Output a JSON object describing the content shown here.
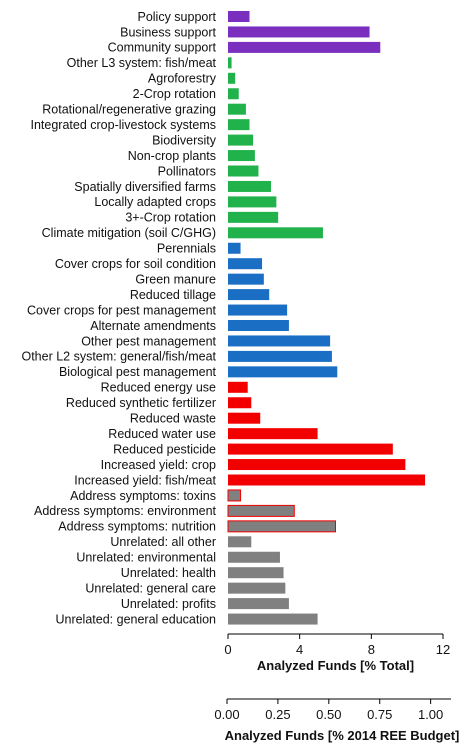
{
  "chart_data": {
    "type": "bar",
    "orientation": "horizontal",
    "categories": [
      "Policy support",
      "Business support",
      "Community support",
      "Other L3 system: fish/meat",
      "Agroforestry",
      "2-Crop rotation",
      "Rotational/regenerative grazing",
      "Integrated crop-livestock systems",
      "Biodiversity",
      "Non-crop plants",
      "Pollinators",
      "Spatially diversified farms",
      "Locally adapted crops",
      "3+-Crop rotation",
      "Climate mitigation (soil C/GHG)",
      "Perennials",
      "Cover crops for soil condition",
      "Green manure",
      "Reduced tillage",
      "Cover crops for pest management",
      "Alternate amendments",
      "Other pest management",
      "Other L2 system: general/fish/meat",
      "Biological pest management",
      "Reduced energy use",
      "Reduced synthetic fertilizer",
      "Reduced waste",
      "Reduced water use",
      "Reduced pesticide",
      "Increased yield: crop",
      "Increased yield: fish/meat",
      "Address symptoms: toxins",
      "Address symptoms: environment",
      "Address symptoms: nutrition",
      "Unrelated: all other",
      "Unrelated: environmental",
      "Unrelated: health",
      "Unrelated: general care",
      "Unrelated: profits",
      "Unrelated: general education"
    ],
    "values": [
      1.2,
      7.9,
      8.5,
      0.2,
      0.4,
      0.6,
      1.0,
      1.2,
      1.4,
      1.5,
      1.7,
      2.4,
      2.7,
      2.8,
      5.3,
      0.7,
      1.9,
      2.0,
      2.3,
      3.3,
      3.4,
      5.7,
      5.8,
      6.1,
      1.1,
      1.3,
      1.8,
      5.0,
      9.2,
      9.9,
      11.0,
      0.7,
      3.7,
      6.0,
      1.3,
      2.9,
      3.1,
      3.2,
      3.4,
      5.0
    ],
    "bar_colors": [
      "#7b2fbe",
      "#7b2fbe",
      "#7b2fbe",
      "#21b24b",
      "#21b24b",
      "#21b24b",
      "#21b24b",
      "#21b24b",
      "#21b24b",
      "#21b24b",
      "#21b24b",
      "#21b24b",
      "#21b24b",
      "#21b24b",
      "#21b24b",
      "#1a6fc4",
      "#1a6fc4",
      "#1a6fc4",
      "#1a6fc4",
      "#1a6fc4",
      "#1a6fc4",
      "#1a6fc4",
      "#1a6fc4",
      "#1a6fc4",
      "#f20000",
      "#f20000",
      "#f20000",
      "#f20000",
      "#f20000",
      "#f20000",
      "#f20000",
      "#808080",
      "#808080",
      "#808080",
      "#808080",
      "#808080",
      "#808080",
      "#808080",
      "#808080",
      "#808080"
    ],
    "bar_outlines": [
      "",
      "",
      "",
      "",
      "",
      "",
      "",
      "",
      "",
      "",
      "",
      "",
      "",
      "",
      "",
      "",
      "",
      "",
      "",
      "",
      "",
      "",
      "",
      "",
      "",
      "",
      "",
      "",
      "",
      "",
      "",
      "#f20000",
      "#f20000",
      "#f20000",
      "",
      "",
      "",
      "",
      "",
      ""
    ],
    "primary_axis": {
      "label": "Analyzed Funds [% Total]",
      "ticks": [
        0,
        4,
        8,
        12
      ],
      "tick_labels": [
        "0",
        "4",
        "8",
        "12"
      ],
      "range": [
        0,
        12
      ]
    },
    "secondary_axis": {
      "label": "Analyzed Funds [% 2014 REE Budget]",
      "ticks": [
        0,
        0.25,
        0.5,
        0.75,
        1.0
      ],
      "tick_labels": [
        "0.00",
        "0.25",
        "0.50",
        "0.75",
        "1.00"
      ],
      "range": [
        0,
        1.1
      ]
    },
    "grid": false,
    "legend": "none"
  }
}
